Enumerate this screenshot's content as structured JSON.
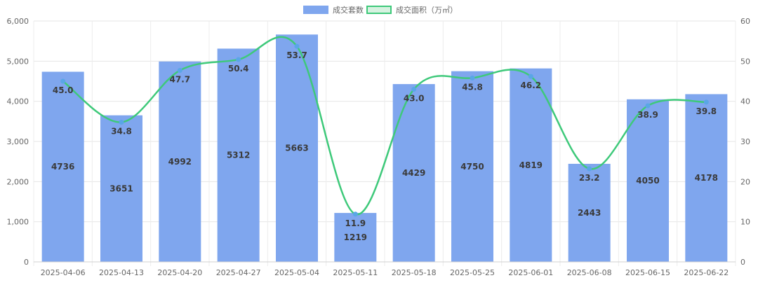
{
  "chart_data": {
    "type": "bar",
    "categories": [
      "2025-04-06",
      "2025-04-13",
      "2025-04-20",
      "2025-04-27",
      "2025-05-04",
      "2025-05-11",
      "2025-05-18",
      "2025-05-25",
      "2025-06-01",
      "2025-06-08",
      "2025-06-15",
      "2025-06-22"
    ],
    "series": [
      {
        "name": "成交套数",
        "type": "bar",
        "axis": "left",
        "color": "#7fa6ee",
        "values": [
          4736,
          3651,
          4992,
          5312,
          5663,
          1219,
          4429,
          4750,
          4819,
          2443,
          4050,
          4178
        ],
        "labels": [
          "4736",
          "3651",
          "4992",
          "5312",
          "5663",
          "1219",
          "4429",
          "4750",
          "4819",
          "2443",
          "4050",
          "4178"
        ]
      },
      {
        "name": "成交面积（万㎡）",
        "type": "line",
        "axis": "right",
        "color": "#3ec97a",
        "point_color": "#5aa6e6",
        "values": [
          45.0,
          34.8,
          47.7,
          50.4,
          53.7,
          11.9,
          43.0,
          45.8,
          46.2,
          23.2,
          38.9,
          39.8
        ],
        "labels": [
          "45.0",
          "34.8",
          "47.7",
          "50.4",
          "53.7",
          "11.9",
          "43.0",
          "45.8",
          "46.2",
          "23.2",
          "38.9",
          "39.8"
        ]
      }
    ],
    "y_left": {
      "range": [
        0,
        6000
      ],
      "ticks": [
        "0",
        "1,000",
        "2,000",
        "3,000",
        "4,000",
        "5,000",
        "6,000"
      ]
    },
    "y_right": {
      "range": [
        0,
        60
      ],
      "ticks": [
        "0",
        "10",
        "20",
        "30",
        "40",
        "50",
        "60"
      ]
    },
    "grid": true,
    "legend_position": "top-center"
  }
}
